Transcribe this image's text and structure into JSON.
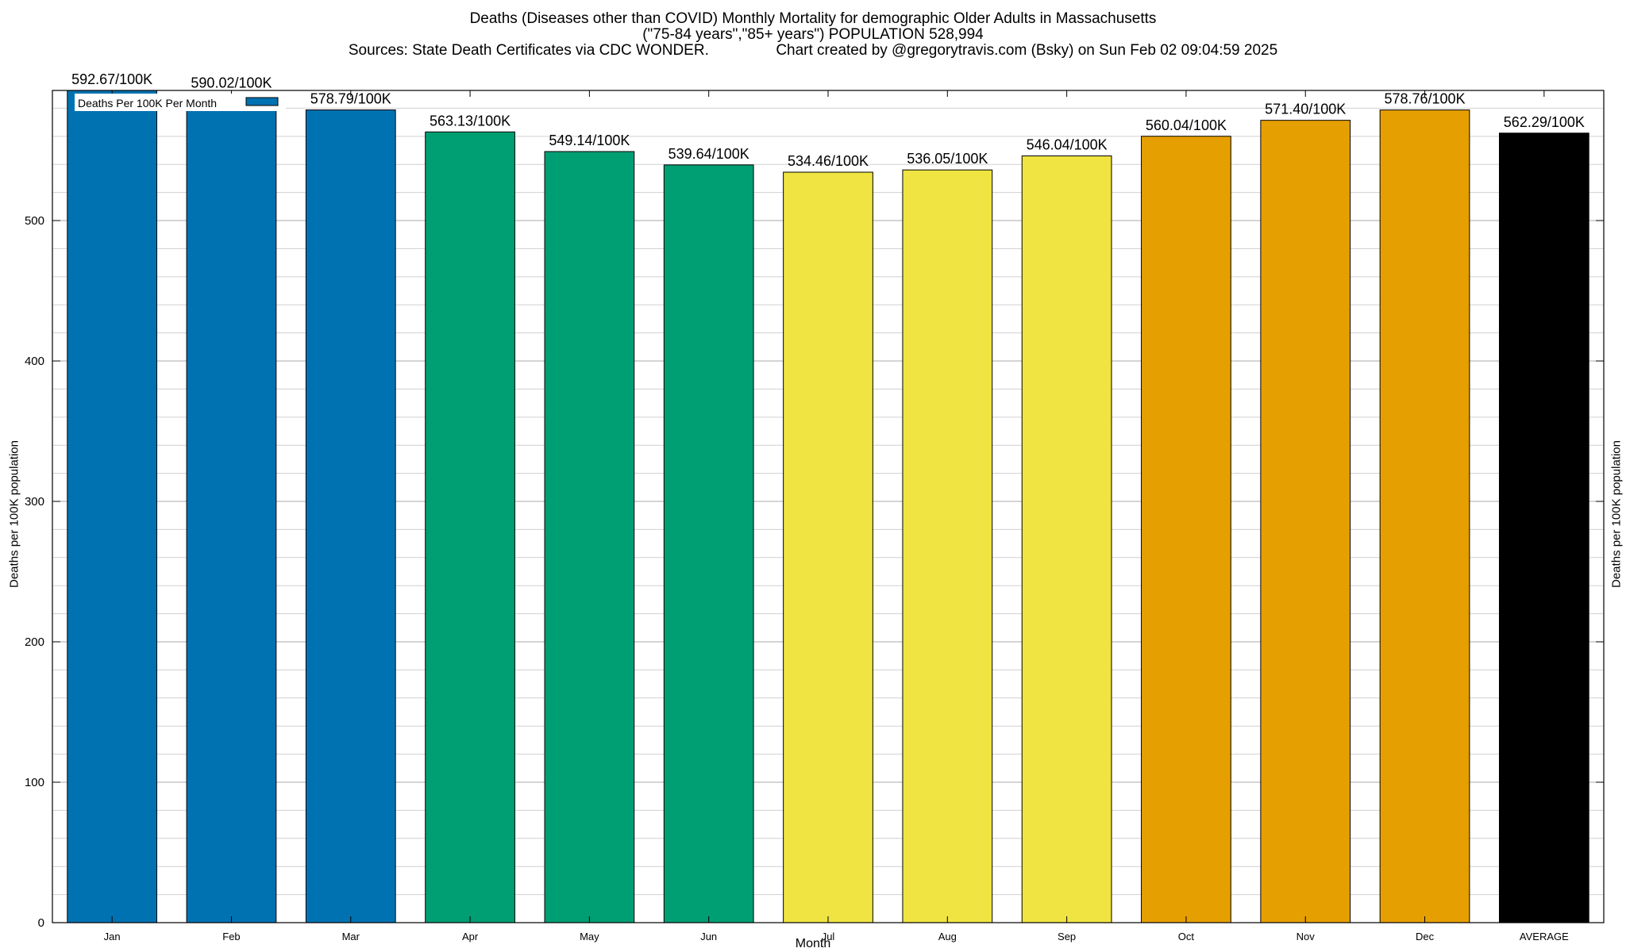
{
  "chart_data": {
    "type": "bar",
    "title": "Deaths (Diseases other than COVID) Monthly Mortality for demographic Older Adults in Massachusetts",
    "subtitle": "(\"75-84 years\",\"85+ years\") POPULATION 528,994",
    "source_line": "Sources: State Death Certificates via CDC WONDER.                Chart created by @gregorytravis.com (Bsky) on Sun Feb 02 09:04:59 2025",
    "xlabel": "Month",
    "ylabel": "Deaths per 100K population",
    "ylabel_right": "Deaths per 100K population",
    "ylim": [
      0,
      592.67
    ],
    "yticks": [
      0,
      100,
      200,
      300,
      400,
      500
    ],
    "grid": true,
    "legend": {
      "label": "Deaths Per 100K Per Month",
      "position": "top-left",
      "color": "#0072b2"
    },
    "categories": [
      "Jan",
      "Feb",
      "Mar",
      "Apr",
      "May",
      "Jun",
      "Jul",
      "Aug",
      "Sep",
      "Oct",
      "Nov",
      "Dec",
      "AVERAGE"
    ],
    "values": [
      592.67,
      590.02,
      578.79,
      563.13,
      549.14,
      539.64,
      534.46,
      536.05,
      546.04,
      560.04,
      571.4,
      578.76,
      562.29
    ],
    "data_labels": [
      "592.67/100K",
      "590.02/100K",
      "578.79/100K",
      "563.13/100K",
      "549.14/100K",
      "539.64/100K",
      "534.46/100K",
      "536.05/100K",
      "546.04/100K",
      "560.04/100K",
      "571.40/100K",
      "578.76/100K",
      "562.29/100K"
    ],
    "colors": [
      "#0072b2",
      "#0072b2",
      "#0072b2",
      "#009e73",
      "#009e73",
      "#009e73",
      "#f0e442",
      "#f0e442",
      "#f0e442",
      "#e69f00",
      "#e69f00",
      "#e69f00",
      "#000000"
    ]
  }
}
